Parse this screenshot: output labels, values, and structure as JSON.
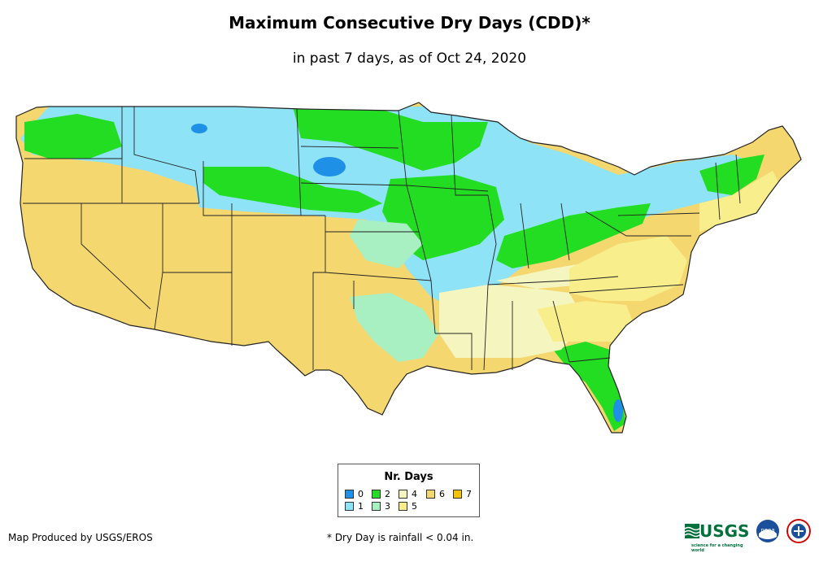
{
  "title": "Maximum Consecutive Dry Days (CDD)*",
  "subtitle": "in past 7 days, as of Oct 24, 2020",
  "legend": {
    "title": "Nr. Days",
    "items": [
      {
        "label": "0",
        "color": "#1e90e6"
      },
      {
        "label": "1",
        "color": "#8fe3f7"
      },
      {
        "label": "2",
        "color": "#22dd22"
      },
      {
        "label": "3",
        "color": "#a8efc2"
      },
      {
        "label": "4",
        "color": "#f5f5c0"
      },
      {
        "label": "5",
        "color": "#f8ee8c"
      },
      {
        "label": "6",
        "color": "#f5d770"
      },
      {
        "label": "7",
        "color": "#f5c200"
      }
    ]
  },
  "credit": "Map Produced by USGS/EROS",
  "footnote": "* Dry Day is rainfall < 0.04 in.",
  "logos": {
    "usgs_text": "USGS",
    "usgs_tagline": "science for a changing world",
    "noaa_text": "noaa"
  },
  "colors": {
    "border": "#222222",
    "usgs_green": "#00703c",
    "noaa_blue": "#1b4f9c"
  }
}
